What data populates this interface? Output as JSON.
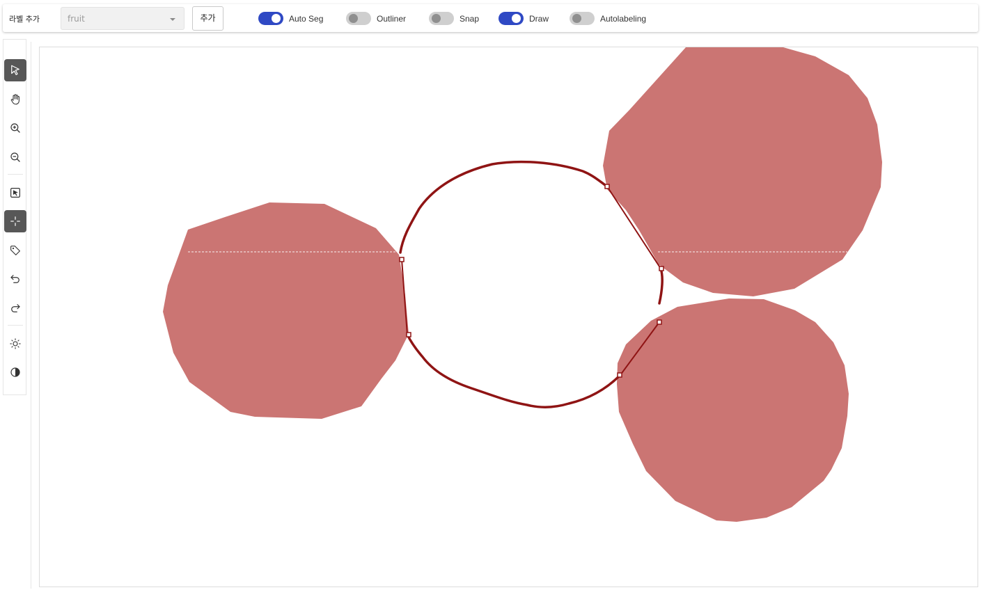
{
  "header": {
    "label_title": "라벨 추가",
    "label_select": {
      "value": "fruit"
    },
    "add_button": "추가",
    "toggles": [
      {
        "label": "Auto Seg",
        "on": true
      },
      {
        "label": "Outliner",
        "on": false
      },
      {
        "label": "Snap",
        "on": false
      },
      {
        "label": "Draw",
        "on": true
      },
      {
        "label": "Autolabeling",
        "on": false
      }
    ]
  },
  "toolbar": {
    "tools": [
      {
        "name": "select-pointer-icon",
        "active": true
      },
      {
        "name": "pan-hand-icon",
        "active": false
      },
      {
        "name": "zoom-in-icon",
        "active": false
      },
      {
        "name": "zoom-out-icon",
        "active": false
      },
      {
        "name": "box-select-icon",
        "active": false
      },
      {
        "name": "crosshair-icon",
        "active": true
      },
      {
        "name": "tag-icon",
        "active": false
      },
      {
        "name": "undo-icon",
        "active": false
      },
      {
        "name": "redo-icon",
        "active": false
      },
      {
        "name": "brightness-icon",
        "active": false
      },
      {
        "name": "contrast-icon",
        "active": false
      }
    ]
  },
  "canvas": {
    "segment_color": "#cb7573",
    "draw_color": "#8f1414"
  }
}
